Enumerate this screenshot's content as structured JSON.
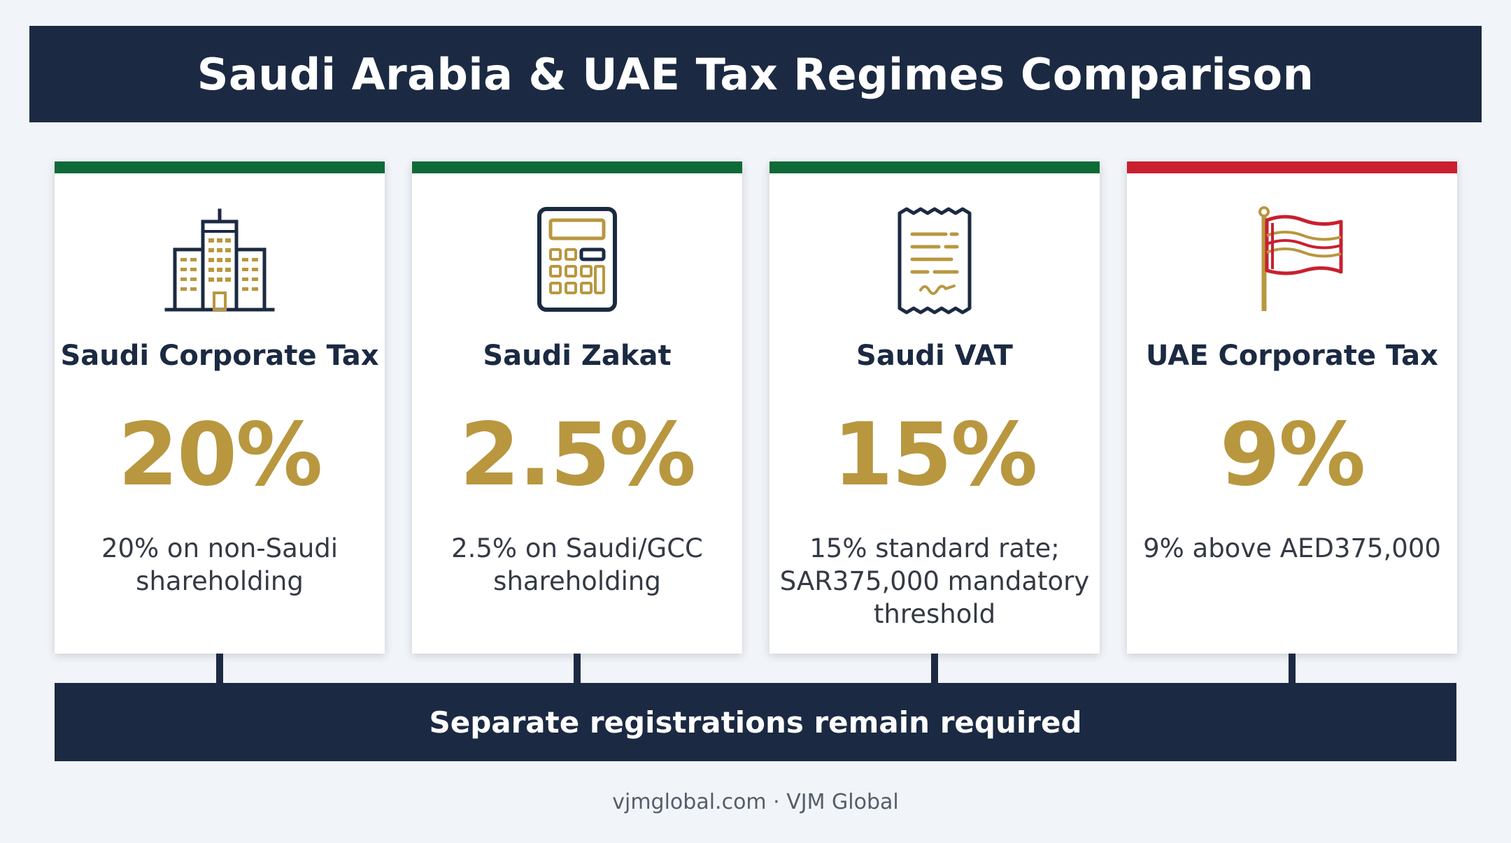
{
  "title": "Saudi Arabia & UAE Tax Regimes Comparison",
  "colors": {
    "navy": "#1b2a42",
    "gold": "#b8973f",
    "green": "#0f6a37",
    "red": "#c8202f"
  },
  "cards": [
    {
      "title": "Saudi Corporate Tax",
      "rate": "20%",
      "description": "20% on non-Saudi shareholding",
      "icon": "building-icon",
      "accent_color": "#0f6a37"
    },
    {
      "title": "Saudi Zakat",
      "rate": "2.5%",
      "description": "2.5% on Saudi/GCC shareholding",
      "icon": "calculator-icon",
      "accent_color": "#0f6a37"
    },
    {
      "title": "Saudi VAT",
      "rate": "15%",
      "description": "15% standard rate; SAR375,000 mandatory threshold",
      "icon": "receipt-icon",
      "accent_color": "#0f6a37"
    },
    {
      "title": "UAE Corporate Tax",
      "rate": "9%",
      "description": "9% above AED375,000",
      "icon": "flag-icon",
      "accent_color": "#c8202f"
    }
  ],
  "bottom_banner": "Separate registrations remain required",
  "footer": "vjmglobal.com · VJM Global"
}
